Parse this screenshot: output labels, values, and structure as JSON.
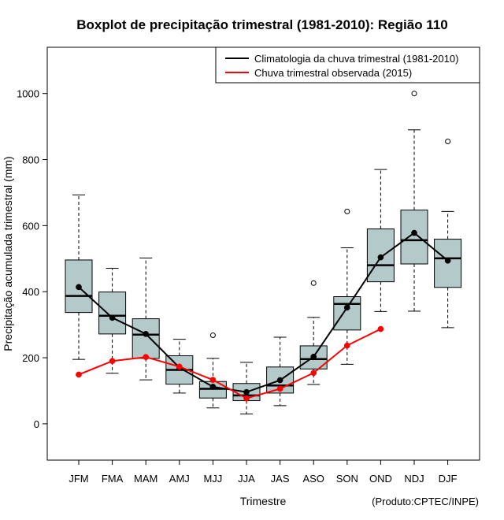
{
  "chart_data": {
    "type": "boxplot",
    "title": "Boxplot de precipitação trimestral (1981-2010): Região 110",
    "xlabel": "Trimestre",
    "ylabel": "Precipitação acumulada trimestral (mm)",
    "credit": "(Produto:CPTEC/INPE)",
    "ylim": [
      -110,
      1140
    ],
    "yticks": [
      0,
      200,
      400,
      600,
      800,
      1000
    ],
    "categories": [
      "JFM",
      "FMA",
      "MAM",
      "AMJ",
      "MJJ",
      "JJA",
      "JAS",
      "ASO",
      "SON",
      "OND",
      "NDJ",
      "DJF"
    ],
    "boxes": [
      {
        "whisker_low": 195,
        "q1": 337,
        "median": 387,
        "q3": 496,
        "whisker_high": 693,
        "outliers": []
      },
      {
        "whisker_low": 153,
        "q1": 272,
        "median": 327,
        "q3": 399,
        "whisker_high": 471,
        "outliers": []
      },
      {
        "whisker_low": 133,
        "q1": 198,
        "median": 270,
        "q3": 318,
        "whisker_high": 502,
        "outliers": []
      },
      {
        "whisker_low": 93,
        "q1": 120,
        "median": 163,
        "q3": 206,
        "whisker_high": 256,
        "outliers": []
      },
      {
        "whisker_low": 48,
        "q1": 78,
        "median": 106,
        "q3": 128,
        "whisker_high": 198,
        "outliers": [
          268
        ]
      },
      {
        "whisker_low": 30,
        "q1": 70,
        "median": 86,
        "q3": 122,
        "whisker_high": 186,
        "outliers": []
      },
      {
        "whisker_low": 55,
        "q1": 93,
        "median": 116,
        "q3": 172,
        "whisker_high": 262,
        "outliers": []
      },
      {
        "whisker_low": 119,
        "q1": 166,
        "median": 196,
        "q3": 236,
        "whisker_high": 322,
        "outliers": [
          426
        ]
      },
      {
        "whisker_low": 180,
        "q1": 284,
        "median": 363,
        "q3": 385,
        "whisker_high": 533,
        "outliers": [
          643
        ]
      },
      {
        "whisker_low": 340,
        "q1": 430,
        "median": 480,
        "q3": 590,
        "whisker_high": 770,
        "outliers": []
      },
      {
        "whisker_low": 341,
        "q1": 484,
        "median": 556,
        "q3": 647,
        "whisker_high": 890,
        "outliers": [
          1000
        ]
      },
      {
        "whisker_low": 291,
        "q1": 413,
        "median": 501,
        "q3": 559,
        "whisker_high": 643,
        "outliers": [
          855
        ]
      }
    ],
    "series": [
      {
        "name": "Climatologia da chuva trimestral (1981-2010)",
        "color": "#000000",
        "values": [
          414,
          321,
          272,
          170,
          112,
          96,
          132,
          203,
          352,
          504,
          578,
          494
        ]
      },
      {
        "name": "Chuva trimestral observada (2015)",
        "color": "#ff0000",
        "values": [
          149,
          190,
          202,
          173,
          133,
          77,
          106,
          154,
          237,
          287,
          null,
          null
        ]
      }
    ],
    "box_fill": "#b3c9ca",
    "legend_position": "top-right"
  }
}
